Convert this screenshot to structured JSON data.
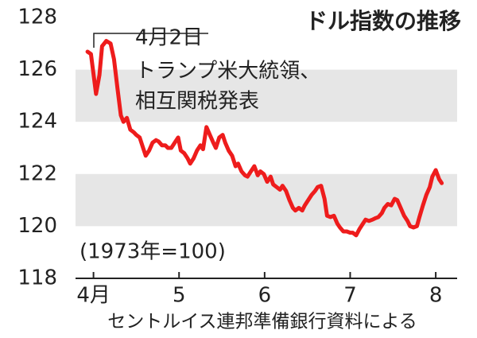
{
  "chart_data": {
    "type": "line",
    "title": "ドル指数の推移",
    "annotation": {
      "date": "4月2日",
      "lines": [
        "トランプ米大統領、",
        "相互関税発表"
      ]
    },
    "note": "(1973年=100)",
    "source": "セントルイス連邦準備銀行資料による",
    "color": "#ee1c1c",
    "xlim": [
      3.79,
      8.25
    ],
    "xticks": [
      {
        "value": 4,
        "label": "4月"
      },
      5,
      6,
      7,
      8
    ],
    "ylim": [
      118,
      128
    ],
    "yticks": [
      118,
      120,
      122,
      124,
      126,
      128
    ],
    "bands": true,
    "x": [
      3.93,
      3.97,
      4.03,
      4.07,
      4.1,
      4.15,
      4.2,
      4.24,
      4.28,
      4.32,
      4.35,
      4.39,
      4.43,
      4.47,
      4.5,
      4.54,
      4.58,
      4.61,
      4.65,
      4.69,
      4.73,
      4.76,
      4.8,
      4.84,
      4.87,
      4.91,
      4.95,
      4.99,
      5.02,
      5.06,
      5.1,
      5.13,
      5.17,
      5.21,
      5.25,
      5.28,
      5.32,
      5.36,
      5.4,
      5.43,
      5.47,
      5.51,
      5.54,
      5.58,
      5.62,
      5.66,
      5.69,
      5.73,
      5.77,
      5.8,
      5.84,
      5.88,
      5.92,
      5.95,
      5.99,
      6.03,
      6.07,
      6.1,
      6.14,
      6.18,
      6.21,
      6.25,
      6.29,
      6.33,
      6.36,
      6.4,
      6.44,
      6.47,
      6.51,
      6.55,
      6.59,
      6.62,
      6.66,
      6.7,
      6.73,
      6.77,
      6.81,
      6.85,
      6.88,
      6.92,
      6.96,
      7.0,
      7.03,
      7.07,
      7.11,
      7.14,
      7.18,
      7.22,
      7.26,
      7.29,
      7.33,
      7.37,
      7.4,
      7.44,
      7.48,
      7.52,
      7.55,
      7.59,
      7.63,
      7.67,
      7.7,
      7.74,
      7.78,
      7.81,
      7.85,
      7.89,
      7.93,
      7.96,
      8.0,
      8.04,
      8.07
    ],
    "values": [
      126.69,
      126.6,
      125.07,
      125.8,
      126.9,
      127.1,
      127.0,
      126.4,
      125.3,
      124.25,
      124.0,
      124.15,
      123.7,
      123.6,
      123.5,
      123.4,
      123.0,
      122.7,
      122.9,
      123.2,
      123.3,
      123.25,
      123.1,
      123.1,
      123.0,
      123.0,
      123.2,
      123.4,
      122.9,
      122.8,
      122.6,
      122.4,
      122.6,
      122.9,
      123.1,
      122.95,
      123.8,
      123.5,
      123.2,
      123.0,
      123.4,
      123.5,
      123.2,
      122.9,
      122.7,
      122.3,
      122.4,
      122.1,
      121.95,
      121.9,
      122.1,
      122.3,
      121.95,
      122.1,
      122.0,
      121.7,
      121.9,
      121.6,
      121.5,
      121.4,
      121.55,
      121.35,
      121.0,
      120.7,
      120.6,
      120.7,
      120.6,
      120.8,
      121.0,
      121.2,
      121.35,
      121.5,
      121.55,
      121.05,
      120.4,
      120.35,
      120.4,
      120.1,
      119.95,
      119.8,
      119.8,
      119.75,
      119.75,
      119.65,
      119.9,
      120.05,
      120.25,
      120.2,
      120.25,
      120.3,
      120.35,
      120.5,
      120.7,
      120.85,
      120.8,
      121.05,
      121.0,
      120.7,
      120.4,
      120.2,
      120.0,
      119.95,
      120.0,
      120.35,
      120.8,
      121.2,
      121.5,
      121.9,
      122.15,
      121.8,
      121.65
    ]
  }
}
